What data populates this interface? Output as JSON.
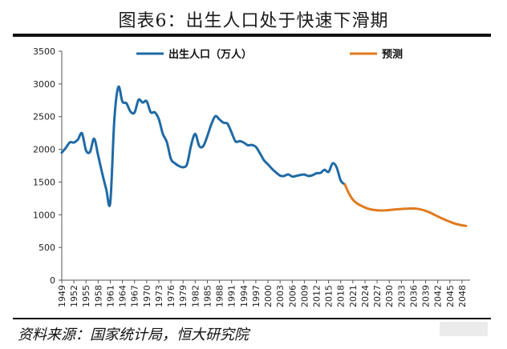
{
  "header": {
    "title": "图表6：出生人口处于快速下滑期"
  },
  "footer": {
    "source": "资料来源：国家统计局，恒大研究院"
  },
  "chart_data": {
    "type": "line",
    "title": "图表6：出生人口处于快速下滑期",
    "xlabel": "",
    "ylabel": "",
    "ylim": [
      0,
      3500
    ],
    "yticks": [
      0,
      500,
      1000,
      1500,
      2000,
      2500,
      3000,
      3500
    ],
    "xlim": [
      1949,
      2050
    ],
    "xticks": [
      "1949",
      "1952",
      "1955",
      "1958",
      "1961",
      "1964",
      "1967",
      "1970",
      "1973",
      "1976",
      "1979",
      "1982",
      "1985",
      "1988",
      "1991",
      "1994",
      "1997",
      "2000",
      "2003",
      "2006",
      "2009",
      "2012",
      "2015",
      "2018",
      "2021",
      "2024",
      "2027",
      "2030",
      "2033",
      "2036",
      "2039",
      "2042",
      "2045",
      "2048"
    ],
    "grid": false,
    "legend": "top",
    "series": [
      {
        "name": "出生人口（万人）",
        "color": "#1f6aa5",
        "x": [
          1949,
          1950,
          1951,
          1952,
          1953,
          1954,
          1955,
          1956,
          1957,
          1958,
          1959,
          1960,
          1961,
          1962,
          1963,
          1964,
          1965,
          1966,
          1967,
          1968,
          1969,
          1970,
          1971,
          1972,
          1973,
          1974,
          1975,
          1976,
          1977,
          1978,
          1979,
          1980,
          1981,
          1982,
          1983,
          1984,
          1985,
          1986,
          1987,
          1988,
          1989,
          1990,
          1991,
          1992,
          1993,
          1994,
          1995,
          1996,
          1997,
          1998,
          1999,
          2000,
          2001,
          2002,
          2003,
          2004,
          2005,
          2006,
          2007,
          2008,
          2009,
          2010,
          2011,
          2012,
          2013,
          2014,
          2015,
          2016,
          2017,
          2018,
          2019
        ],
        "y": [
          1950,
          2023,
          2107,
          2104,
          2151,
          2245,
          1984,
          1963,
          2163,
          1906,
          1635,
          1389,
          1189,
          2451,
          2954,
          2729,
          2704,
          2577,
          2563,
          2757,
          2715,
          2736,
          2567,
          2566,
          2463,
          2235,
          2109,
          1853,
          1786,
          1745,
          1727,
          1776,
          2064,
          2237,
          2052,
          2050,
          2202,
          2384,
          2508,
          2457,
          2407,
          2391,
          2258,
          2119,
          2126,
          2104,
          2063,
          2067,
          2038,
          1942,
          1834,
          1771,
          1702,
          1647,
          1599,
          1593,
          1617,
          1584,
          1594,
          1608,
          1615,
          1592,
          1604,
          1635,
          1640,
          1687,
          1655,
          1786,
          1723,
          1523,
          1465
        ]
      },
      {
        "name": "预测",
        "color": "#e07a1f",
        "x": [
          2019,
          2020,
          2021,
          2022,
          2023,
          2024,
          2025,
          2026,
          2027,
          2028,
          2029,
          2030,
          2031,
          2032,
          2033,
          2034,
          2035,
          2036,
          2037,
          2038,
          2039,
          2040,
          2041,
          2042,
          2043,
          2044,
          2045,
          2046,
          2047,
          2048,
          2049
        ],
        "y": [
          1465,
          1330,
          1230,
          1175,
          1140,
          1110,
          1088,
          1075,
          1068,
          1065,
          1067,
          1072,
          1078,
          1083,
          1088,
          1092,
          1095,
          1095,
          1090,
          1078,
          1060,
          1035,
          1005,
          975,
          945,
          918,
          893,
          870,
          852,
          838,
          830
        ]
      }
    ]
  }
}
